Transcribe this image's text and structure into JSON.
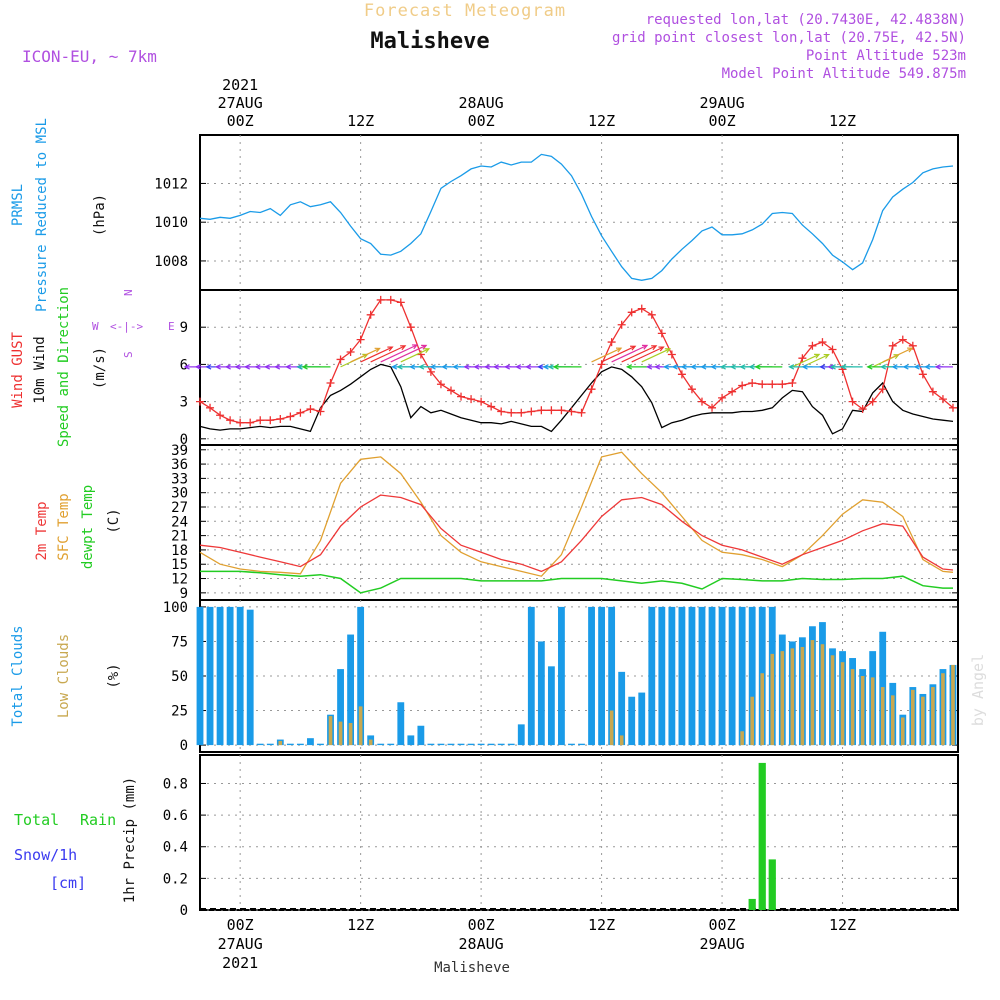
{
  "header": {
    "title": "Forecast Meteogram",
    "location": "Malisheve",
    "model": "ICON-EU, ~ 7km",
    "requested": "requested lon,lat (20.7430E, 42.4838N)",
    "gridpoint": "grid point closest lon,lat (20.75E, 42.5N)",
    "point_alt": "Point Altitude 523m",
    "model_alt": "Model Point Altitude 549.875m"
  },
  "time_axis": {
    "start": "2021-08-27 00Z minus 4h",
    "top_labels": [
      {
        "h": 0,
        "lines": [
          "2021",
          "27AUG",
          "00Z"
        ]
      },
      {
        "h": 12,
        "lines": [
          "12Z"
        ]
      },
      {
        "h": 24,
        "lines": [
          "28AUG",
          "00Z"
        ]
      },
      {
        "h": 36,
        "lines": [
          "12Z"
        ]
      },
      {
        "h": 48,
        "lines": [
          "29AUG",
          "00Z"
        ]
      },
      {
        "h": 60,
        "lines": [
          "12Z"
        ]
      }
    ],
    "bottom_labels": [
      {
        "h": 0,
        "lines": [
          "00Z",
          "27AUG",
          "2021"
        ]
      },
      {
        "h": 12,
        "lines": [
          "12Z"
        ]
      },
      {
        "h": 24,
        "lines": [
          "00Z",
          "28AUG"
        ]
      },
      {
        "h": 36,
        "lines": [
          "12Z"
        ]
      },
      {
        "h": 48,
        "lines": [
          "00Z",
          "29AUG"
        ]
      },
      {
        "h": 60,
        "lines": [
          "12Z"
        ]
      }
    ],
    "footer": "Malisheve"
  },
  "watermark": "by Angel",
  "colors": {
    "pressure": "#1a9be8",
    "gust": "#ee3030",
    "wind": "#000000",
    "temp2m": "#ee3838",
    "sfc": "#e0a030",
    "dewpt": "#22cc22",
    "total_clouds": "#1a9be8",
    "low_clouds": "#c8a850",
    "rain": "#22cc22",
    "snow": "#3a3af0",
    "purple": "#b050e0"
  },
  "chart_data": [
    {
      "type": "line",
      "id": "pressure",
      "labels": {
        "title1": "PRMSL",
        "title2": "Pressure Reduced to MSL",
        "unit": "(hPa)"
      },
      "yticks": [
        1008,
        1010,
        1012
      ],
      "ylim": [
        1006.5,
        1014.5
      ],
      "series": [
        {
          "name": "PRMSL",
          "x": [
            -4,
            -3,
            -2,
            -1,
            0,
            1,
            2,
            3,
            4,
            5,
            6,
            7,
            8,
            9,
            10,
            11,
            12,
            13,
            14,
            15,
            16,
            17,
            18,
            19,
            20,
            21,
            22,
            23,
            24,
            25,
            26,
            27,
            28,
            29,
            30,
            31,
            32,
            33,
            34,
            35,
            36,
            37,
            38,
            39,
            40,
            41,
            42,
            43,
            44,
            45,
            46,
            47,
            48,
            49,
            50,
            51,
            52,
            53,
            54,
            55,
            56,
            57,
            58,
            59,
            60,
            61,
            62,
            63,
            64,
            65,
            66,
            67,
            68,
            69,
            70,
            71
          ],
          "values": [
            1010.2,
            1010.15,
            1010.25,
            1010.2,
            1010.35,
            1010.55,
            1010.5,
            1010.7,
            1010.35,
            1010.9,
            1011.05,
            1010.8,
            1010.9,
            1011.05,
            1010.5,
            1009.8,
            1009.15,
            1008.9,
            1008.35,
            1008.3,
            1008.5,
            1008.9,
            1009.4,
            1010.55,
            1011.75,
            1012.1,
            1012.4,
            1012.75,
            1012.9,
            1012.85,
            1013.1,
            1012.95,
            1013.1,
            1013.1,
            1013.5,
            1013.4,
            1013.0,
            1012.4,
            1011.45,
            1010.3,
            1009.3,
            1008.5,
            1007.7,
            1007.1,
            1007.0,
            1007.1,
            1007.5,
            1008.1,
            1008.6,
            1009.05,
            1009.55,
            1009.75,
            1009.35,
            1009.35,
            1009.4,
            1009.6,
            1009.9,
            1010.45,
            1010.5,
            1010.45,
            1009.85,
            1009.4,
            1008.9,
            1008.3,
            1007.95,
            1007.55,
            1007.9,
            1009.1,
            1010.6,
            1011.3,
            1011.7,
            1012.05,
            1012.55,
            1012.75,
            1012.85,
            1012.9
          ]
        }
      ]
    },
    {
      "type": "line",
      "id": "wind",
      "labels": {
        "t1": "Wind GUST",
        "t2": "10m Wind",
        "t3": "Speed and Direction",
        "unit": "(m/s)",
        "compass_w": "W",
        "compass_e": "E",
        "compass_n": "N",
        "compass_s": "S"
      },
      "yticks": [
        0,
        3,
        6,
        9
      ],
      "ylim": [
        -0.5,
        12
      ],
      "series": [
        {
          "name": "gust",
          "x": [
            -4,
            -3,
            -2,
            -1,
            0,
            1,
            2,
            3,
            4,
            5,
            6,
            7,
            8,
            9,
            10,
            11,
            12,
            13,
            14,
            15,
            16,
            17,
            18,
            19,
            20,
            21,
            22,
            23,
            24,
            25,
            26,
            27,
            28,
            29,
            30,
            31,
            32,
            33,
            34,
            35,
            36,
            37,
            38,
            39,
            40,
            41,
            42,
            43,
            44,
            45,
            46,
            47,
            48,
            49,
            50,
            51,
            52,
            53,
            54,
            55,
            56,
            57,
            58,
            59,
            60,
            61,
            62,
            63,
            64,
            65,
            66,
            67,
            68,
            69,
            70,
            71
          ],
          "values": [
            3.0,
            2.5,
            1.9,
            1.5,
            1.3,
            1.3,
            1.5,
            1.5,
            1.6,
            1.8,
            2.1,
            2.4,
            2.2,
            4.5,
            6.4,
            7.0,
            8.0,
            10.0,
            11.2,
            11.2,
            11.0,
            9.0,
            6.8,
            5.4,
            4.4,
            3.9,
            3.4,
            3.2,
            3.0,
            2.6,
            2.2,
            2.1,
            2.1,
            2.2,
            2.3,
            2.3,
            2.3,
            2.2,
            2.1,
            4.0,
            6.0,
            7.8,
            9.2,
            10.2,
            10.5,
            10.0,
            8.5,
            6.8,
            5.2,
            4.0,
            3.0,
            2.5,
            3.3,
            3.8,
            4.3,
            4.5,
            4.4,
            4.4,
            4.4,
            4.5,
            6.5,
            7.5,
            7.8,
            7.2,
            5.6,
            3.0,
            2.4,
            3.0,
            4.0,
            7.5,
            8.0,
            7.5,
            5.2,
            3.8,
            3.2,
            2.5
          ]
        },
        {
          "name": "wind10m",
          "x": [
            -4,
            -3,
            -2,
            -1,
            0,
            1,
            2,
            3,
            4,
            5,
            6,
            7,
            8,
            9,
            10,
            11,
            12,
            13,
            14,
            15,
            16,
            17,
            18,
            19,
            20,
            21,
            22,
            23,
            24,
            25,
            26,
            27,
            28,
            29,
            30,
            31,
            32,
            33,
            34,
            35,
            36,
            37,
            38,
            39,
            40,
            41,
            42,
            43,
            44,
            45,
            46,
            47,
            48,
            49,
            50,
            51,
            52,
            53,
            54,
            55,
            56,
            57,
            58,
            59,
            60,
            61,
            62,
            63,
            64,
            65,
            66,
            67,
            68,
            69,
            70,
            71
          ],
          "values": [
            1.0,
            0.8,
            0.7,
            0.8,
            0.8,
            0.9,
            1.0,
            0.9,
            1.0,
            1.0,
            0.8,
            0.6,
            2.5,
            3.5,
            3.9,
            4.4,
            5.0,
            5.6,
            6.0,
            5.8,
            4.2,
            1.7,
            2.6,
            2.1,
            2.3,
            2.0,
            1.7,
            1.5,
            1.3,
            1.3,
            1.2,
            1.4,
            1.2,
            1.0,
            1.0,
            0.6,
            1.5,
            2.5,
            3.5,
            4.5,
            5.4,
            5.8,
            5.6,
            5.0,
            4.2,
            2.9,
            0.9,
            1.3,
            1.5,
            1.8,
            2.0,
            2.1,
            2.1,
            2.1,
            2.2,
            2.2,
            2.3,
            2.5,
            3.3,
            3.9,
            3.8,
            2.6,
            1.9,
            0.4,
            0.8,
            2.3,
            2.2,
            3.7,
            4.5,
            3.0,
            2.3,
            2.0,
            1.8,
            1.6,
            1.5,
            1.4
          ]
        }
      ]
    },
    {
      "type": "line",
      "id": "temp",
      "labels": {
        "t1": "2m Temp",
        "t2": "SFC Temp",
        "t3": "dewpt Temp",
        "unit": "(C)"
      },
      "yticks": [
        9,
        12,
        15,
        18,
        21,
        24,
        27,
        30,
        33,
        36,
        39
      ],
      "ylim": [
        7.5,
        40
      ],
      "series": [
        {
          "name": "2m",
          "x": [
            -4,
            -2,
            0,
            2,
            4,
            6,
            8,
            10,
            12,
            14,
            16,
            18,
            20,
            22,
            24,
            26,
            28,
            30,
            32,
            34,
            36,
            38,
            40,
            42,
            44,
            46,
            48,
            50,
            52,
            54,
            56,
            58,
            60,
            62,
            64,
            66,
            68,
            70,
            71
          ],
          "values": [
            19,
            18.5,
            17.5,
            16.5,
            15.5,
            14.5,
            17,
            23,
            27,
            29.5,
            29,
            27.5,
            22.5,
            19,
            17.5,
            16,
            15,
            13.5,
            15.5,
            20,
            25,
            28.5,
            29,
            27.5,
            24,
            21,
            19,
            18,
            16.5,
            15,
            17,
            18.5,
            20,
            22,
            23.5,
            23,
            16.5,
            14,
            13.8
          ]
        },
        {
          "name": "sfc",
          "x": [
            -4,
            -2,
            0,
            2,
            4,
            6,
            8,
            10,
            12,
            14,
            16,
            18,
            20,
            22,
            24,
            26,
            28,
            30,
            32,
            34,
            36,
            38,
            40,
            42,
            44,
            46,
            48,
            50,
            52,
            54,
            56,
            58,
            60,
            62,
            64,
            66,
            68,
            70,
            71
          ],
          "values": [
            17.5,
            15,
            14,
            13.5,
            13.3,
            13,
            20,
            32,
            37,
            37.5,
            34,
            28,
            21,
            17.5,
            15.5,
            14.5,
            13.5,
            12.5,
            17,
            27,
            37.5,
            38.5,
            34,
            30,
            25,
            20,
            17.5,
            17,
            16,
            14.5,
            17,
            21,
            25.5,
            28.5,
            28,
            25,
            16,
            13.5,
            13.3
          ]
        },
        {
          "name": "dewpt",
          "x": [
            -4,
            -2,
            0,
            2,
            4,
            6,
            8,
            10,
            12,
            14,
            16,
            18,
            20,
            22,
            24,
            26,
            28,
            30,
            32,
            34,
            36,
            38,
            40,
            42,
            44,
            46,
            48,
            50,
            52,
            54,
            56,
            58,
            60,
            62,
            64,
            66,
            68,
            70,
            71
          ],
          "values": [
            13.5,
            13.5,
            13.5,
            13.2,
            12.8,
            12.5,
            12.8,
            12,
            9,
            10,
            12,
            12,
            12,
            12,
            11.5,
            11.5,
            11.5,
            11.5,
            12,
            12,
            12,
            11.5,
            11,
            11.5,
            11,
            9.8,
            12,
            11.8,
            11.5,
            11.5,
            12,
            11.8,
            11.8,
            12,
            12,
            12.5,
            10.5,
            10,
            10
          ]
        }
      ]
    },
    {
      "type": "bar",
      "id": "clouds",
      "labels": {
        "t1": "Total Clouds",
        "t2": "Low Clouds",
        "unit": "(%)"
      },
      "yticks": [
        0,
        25,
        50,
        75,
        100
      ],
      "ylim": [
        -5,
        105
      ],
      "x": [
        -4,
        -3,
        -2,
        -1,
        0,
        1,
        2,
        3,
        4,
        5,
        6,
        7,
        8,
        9,
        10,
        11,
        12,
        13,
        14,
        15,
        16,
        17,
        18,
        19,
        20,
        21,
        22,
        23,
        24,
        25,
        26,
        27,
        28,
        29,
        30,
        31,
        32,
        33,
        34,
        35,
        36,
        37,
        38,
        39,
        40,
        41,
        42,
        43,
        44,
        45,
        46,
        47,
        48,
        49,
        50,
        51,
        52,
        53,
        54,
        55,
        56,
        57,
        58,
        59,
        60,
        61,
        62,
        63,
        64,
        65,
        66,
        67,
        68,
        69,
        70,
        71
      ],
      "series": [
        {
          "name": "total",
          "values": [
            100,
            100,
            100,
            100,
            100,
            98,
            1,
            1,
            4,
            1,
            1,
            5,
            1,
            22,
            55,
            80,
            100,
            7,
            1,
            1,
            31,
            7,
            14,
            1,
            1,
            1,
            1,
            1,
            1,
            1,
            1,
            1,
            15,
            100,
            75,
            57,
            100,
            1,
            1,
            100,
            100,
            100,
            53,
            35,
            38,
            100,
            100,
            100,
            100,
            100,
            100,
            100,
            100,
            100,
            100,
            100,
            100,
            100,
            80,
            75,
            78,
            86,
            89,
            70,
            68,
            63,
            55,
            68,
            82,
            45,
            22,
            42,
            37,
            44,
            55,
            58
          ]
        },
        {
          "name": "low",
          "values": [
            0,
            0,
            0,
            0,
            0,
            0,
            0,
            0,
            3,
            0,
            0,
            0,
            0,
            21,
            17,
            16,
            28,
            4,
            0,
            0,
            0,
            0,
            0,
            0,
            0,
            0,
            0,
            0,
            0,
            0,
            0,
            0,
            0,
            0,
            0,
            0,
            0,
            0,
            0,
            0,
            0,
            25,
            7,
            0,
            0,
            0,
            0,
            0,
            0,
            0,
            0,
            0,
            0,
            0,
            10,
            35,
            52,
            66,
            68,
            70,
            71,
            76,
            73,
            65,
            60,
            55,
            50,
            49,
            42,
            36,
            20,
            40,
            35,
            42,
            52,
            58
          ]
        }
      ]
    },
    {
      "type": "bar",
      "id": "precip",
      "labels": {
        "t1a": "Total",
        "t1b": "Rain",
        "t2": "Snow/1h",
        "t3": "[cm]",
        "unit": "1hr Precip (mm)"
      },
      "yticks": [
        "0",
        "0.2",
        "0.4",
        "0.6",
        "0.8"
      ],
      "ylim": [
        0,
        0.98
      ],
      "series": [
        {
          "name": "rain",
          "x": [
            51,
            52,
            53
          ],
          "values": [
            0.07,
            0.93,
            0.32
          ]
        }
      ]
    }
  ]
}
